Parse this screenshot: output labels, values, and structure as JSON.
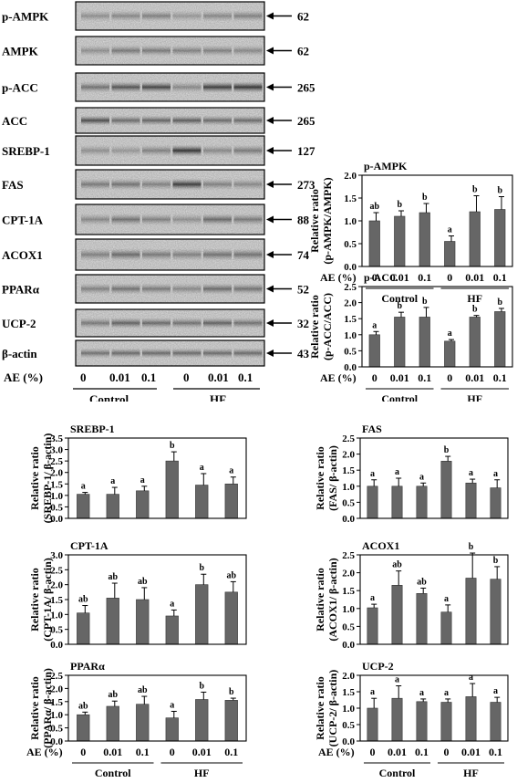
{
  "western_blot": {
    "bands": [
      {
        "label": "p-AMPK",
        "kda": "62"
      },
      {
        "label": "AMPK",
        "kda": "62"
      },
      {
        "label": "p-ACC",
        "kda": "265"
      },
      {
        "label": "ACC",
        "kda": "265"
      },
      {
        "label": "SREBP-1",
        "kda": "127"
      },
      {
        "label": "FAS",
        "kda": "273"
      },
      {
        "label": "CPT-1A",
        "kda": "88"
      },
      {
        "label": "ACOX1",
        "kda": "74"
      },
      {
        "label": "PPARα",
        "kda": "52"
      },
      {
        "label": "UCP-2",
        "kda": "32"
      },
      {
        "label": "β-actin",
        "kda": "43"
      }
    ],
    "ae_label": "AE  (%)",
    "doses": [
      "0",
      "0.01",
      "0.1",
      "0",
      "0.01",
      "0.1"
    ],
    "groups": [
      "Control",
      "HF"
    ]
  },
  "chart_data": [
    {
      "type": "bar",
      "title": "p-AMPK",
      "ylabel": "Relative ratio",
      "ylabel2": "(p-AMPK/AMPK)",
      "ylim": [
        0,
        2.0
      ],
      "ticks": [
        "0.0",
        "0.5",
        "1.0",
        "1.5",
        "2.0"
      ],
      "values": [
        1.0,
        1.1,
        1.18,
        0.55,
        1.2,
        1.25
      ],
      "errors": [
        0.18,
        0.12,
        0.2,
        0.12,
        0.35,
        0.28
      ],
      "letters": [
        "ab",
        "b",
        "b",
        "a",
        "b",
        "b"
      ],
      "categories": [
        "0",
        "0.01",
        "0.1",
        "0",
        "0.01",
        "0.1"
      ],
      "groups": [
        "Control",
        "HF"
      ],
      "xlabel": "AE  (%)"
    },
    {
      "type": "bar",
      "title": "p-ACC",
      "ylabel": "Relative ratio",
      "ylabel2": "(p-ACC/ACC)",
      "ylim": [
        0,
        2.5
      ],
      "ticks": [
        "0.0",
        "0.5",
        "1.0",
        "1.5",
        "2.0",
        "2.5"
      ],
      "values": [
        1.0,
        1.55,
        1.55,
        0.8,
        1.55,
        1.72
      ],
      "errors": [
        0.1,
        0.15,
        0.3,
        0.05,
        0.05,
        0.1
      ],
      "letters": [
        "a",
        "b",
        "b",
        "a",
        "b",
        "b"
      ],
      "categories": [
        "0",
        "0.01",
        "0.1",
        "0",
        "0.01",
        "0.1"
      ],
      "groups": [
        "Control",
        "HF"
      ],
      "xlabel": "AE  (%)"
    },
    {
      "type": "bar",
      "title": "SREBP-1",
      "ylabel": "Relative ratio",
      "ylabel2": "(SREBP-1/ β-actin)",
      "ylim": [
        0,
        3.5
      ],
      "ticks": [
        "0.0",
        "0.5",
        "1.0",
        "1.5",
        "2.0",
        "2.5",
        "3.0",
        "3.5"
      ],
      "values": [
        1.05,
        1.05,
        1.2,
        2.5,
        1.45,
        1.5
      ],
      "errors": [
        0.08,
        0.3,
        0.2,
        0.4,
        0.5,
        0.3
      ],
      "letters": [
        "a",
        "a",
        "a",
        "b",
        "a",
        "a"
      ]
    },
    {
      "type": "bar",
      "title": "FAS",
      "ylabel": "Relative ratio",
      "ylabel2": "(FAS/ β-actin)",
      "ylim": [
        0,
        2.5
      ],
      "ticks": [
        "0.0",
        "0.5",
        "1.0",
        "1.5",
        "2.0",
        "2.5"
      ],
      "values": [
        1.0,
        1.0,
        1.0,
        1.78,
        1.1,
        0.95
      ],
      "errors": [
        0.2,
        0.25,
        0.1,
        0.15,
        0.12,
        0.25
      ],
      "letters": [
        "a",
        "a",
        "a",
        "b",
        "a",
        "a"
      ]
    },
    {
      "type": "bar",
      "title": "CPT-1A",
      "ylabel": "Relative ratio",
      "ylabel2": "(CPT-1A/ β-actin)",
      "ylim": [
        0,
        3.0
      ],
      "ticks": [
        "0.0",
        "0.5",
        "1.0",
        "1.5",
        "2.0",
        "2.5",
        "3.0"
      ],
      "values": [
        1.05,
        1.55,
        1.5,
        0.95,
        2.0,
        1.75
      ],
      "errors": [
        0.25,
        0.5,
        0.4,
        0.2,
        0.35,
        0.35
      ],
      "letters": [
        "ab",
        "ab",
        "ab",
        "a",
        "b",
        "ab"
      ]
    },
    {
      "type": "bar",
      "title": "ACOX1",
      "ylabel": "Relative ratio",
      "ylabel2": "(ACOX1/ β-actin)",
      "ylim": [
        0,
        2.5
      ],
      "ticks": [
        "0.0",
        "0.5",
        "1.0",
        "1.5",
        "2.0",
        "2.5"
      ],
      "values": [
        1.02,
        1.65,
        1.42,
        0.9,
        1.85,
        1.82
      ],
      "errors": [
        0.1,
        0.4,
        0.15,
        0.2,
        0.7,
        0.35
      ],
      "letters": [
        "a",
        "ab",
        "ab",
        "a",
        "b",
        "b"
      ]
    },
    {
      "type": "bar",
      "title": "PPARα",
      "ylabel": "Relative ratio",
      "ylabel2": "(PPARα/ β-actin)",
      "ylim": [
        0,
        2.5
      ],
      "ticks": [
        "0.0",
        "0.5",
        "1.0",
        "1.5",
        "2.0",
        "2.5"
      ],
      "values": [
        1.0,
        1.32,
        1.4,
        0.88,
        1.58,
        1.55
      ],
      "errors": [
        0.1,
        0.2,
        0.3,
        0.25,
        0.28,
        0.08
      ],
      "letters": [
        "ab",
        "ab",
        "ab",
        "a",
        "b",
        "b"
      ],
      "categories": [
        "0",
        "0.01",
        "0.1",
        "0",
        "0.01",
        "0.1"
      ],
      "groups": [
        "Control",
        "HF"
      ],
      "xlabel": "AE  (%)"
    },
    {
      "type": "bar",
      "title": "UCP-2",
      "ylabel": "Relative ratio",
      "ylabel2": "(UCP-2/ β-actin)",
      "ylim": [
        0,
        2.0
      ],
      "ticks": [
        "0.0",
        "0.5",
        "1.0",
        "1.5",
        "2.0"
      ],
      "values": [
        1.0,
        1.3,
        1.2,
        1.18,
        1.35,
        1.18
      ],
      "errors": [
        0.3,
        0.38,
        0.08,
        0.1,
        0.4,
        0.15
      ],
      "letters": [
        "a",
        "a",
        "a",
        "a",
        "a",
        "a"
      ],
      "categories": [
        "0",
        "0.01",
        "0.1",
        "0",
        "0.01",
        "0.1"
      ],
      "groups": [
        "Control",
        "HF"
      ],
      "xlabel": "AE  (%)"
    }
  ]
}
